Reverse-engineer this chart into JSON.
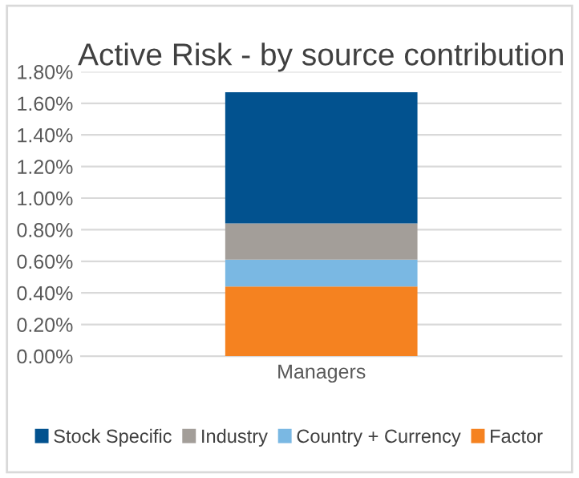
{
  "chart_data": {
    "type": "bar",
    "title": "Active Risk - by source contribution",
    "stacked": true,
    "categories": [
      "Managers"
    ],
    "series": [
      {
        "name": "Factor",
        "color": "#f58220",
        "values": [
          0.44
        ]
      },
      {
        "name": "Country + Currency",
        "color": "#7ab8e3",
        "values": [
          0.17
        ]
      },
      {
        "name": "Industry",
        "color": "#a39e99",
        "values": [
          0.23
        ]
      },
      {
        "name": "Stock Specific",
        "color": "#02528f",
        "values": [
          0.83
        ]
      }
    ],
    "ylim": [
      0,
      1.8
    ],
    "yticks": [
      {
        "value": 0,
        "label": "0.00%"
      },
      {
        "value": 0.2,
        "label": "0.20%"
      },
      {
        "value": 0.4,
        "label": "0.40%"
      },
      {
        "value": 0.6,
        "label": "0.60%"
      },
      {
        "value": 0.8,
        "label": "0.80%"
      },
      {
        "value": 1.0,
        "label": "1.00%"
      },
      {
        "value": 1.2,
        "label": "1.20%"
      },
      {
        "value": 1.4,
        "label": "1.40%"
      },
      {
        "value": 1.6,
        "label": "1.60%"
      },
      {
        "value": 1.8,
        "label": "1.80%"
      }
    ],
    "grid": "y",
    "legend": "bottom"
  }
}
